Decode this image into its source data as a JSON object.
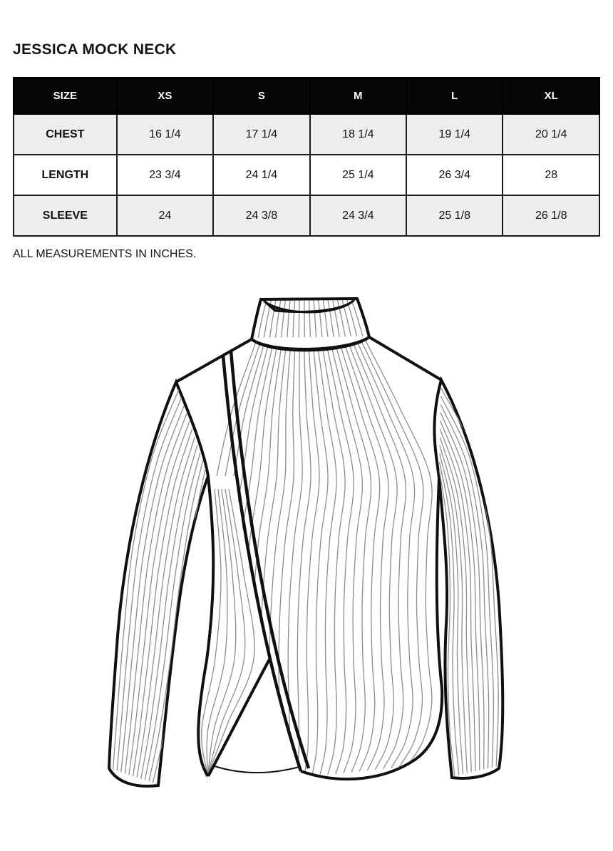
{
  "page": {
    "title": "JESSICA MOCK NECK",
    "note": "ALL MEASUREMENTS IN INCHES."
  },
  "size_chart": {
    "columns": [
      "SIZE",
      "XS",
      "S",
      "M",
      "L",
      "XL"
    ],
    "rows": [
      {
        "label": "CHEST",
        "values": [
          "16 1/4",
          "17 1/4",
          "18 1/4",
          "19 1/4",
          "20 1/4"
        ]
      },
      {
        "label": "LENGTH",
        "values": [
          "23 3/4",
          "24 1/4",
          "25 1/4",
          "26 3/4",
          "28"
        ]
      },
      {
        "label": "SLEEVE",
        "values": [
          "24",
          "24 3/8",
          "24 3/4",
          "25 1/8",
          "26 1/8"
        ]
      }
    ],
    "colors": {
      "header_bg": "#060606",
      "header_text": "#ffffff",
      "row_alt_bg": "#ededed",
      "row_bg": "#ffffff",
      "border": "#1b1b1b"
    }
  },
  "illustration": {
    "label": "mock-neck-sweater-flat-sketch",
    "garment": "Ribbed knit mock neck top, long sleeves, asymmetric wrap front with double-stripe trim and split hem",
    "colors": {
      "outline": "#101010",
      "rib": "#8d8d8d",
      "fill": "#ffffff",
      "collar_inside": "#3a3d43"
    }
  }
}
